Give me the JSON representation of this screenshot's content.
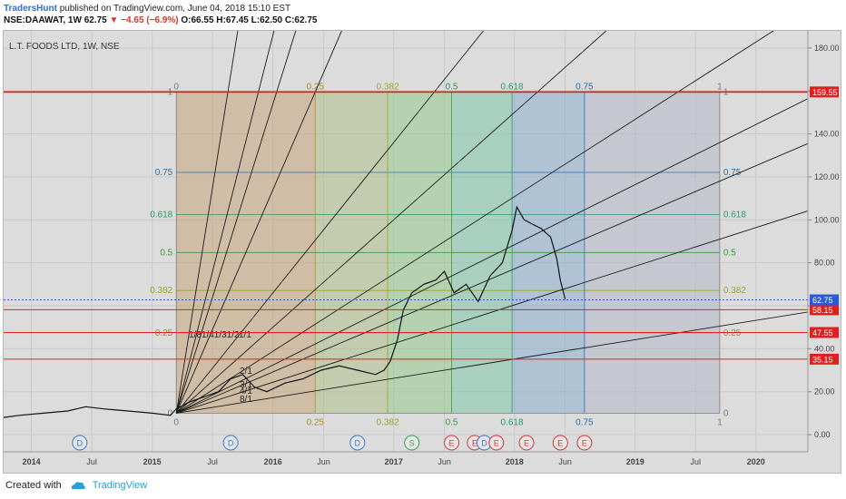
{
  "header": {
    "user": "TradersHunt",
    "published": "published on TradingView.com, June 04, 2018 15:10 EST",
    "symbol": "NSE:DAAWAT, 1W",
    "last": "62.75",
    "change": "−4.65 (−6.9%)",
    "ohlc": "O:66.55 H:67.45 L:62.50 C:62.75"
  },
  "footer": {
    "created": "Created with",
    "brand": "TradingView"
  },
  "chart_data": {
    "type": "line",
    "title": "L.T. FOODS LTD, 1W, NSE",
    "y_ticks": [
      0,
      20,
      40,
      60,
      80,
      100,
      120,
      140,
      160,
      180
    ],
    "y_tick_labels": [
      "0.00",
      "20.00",
      "40.00",
      "60.00",
      "80.00",
      "100.00",
      "120.00",
      "140.00",
      "160.00",
      "180.00"
    ],
    "ylim": [
      -8,
      188
    ],
    "x_ticks": [
      {
        "label": "2014",
        "t": 2014.0,
        "bold": true
      },
      {
        "label": "Jul",
        "t": 2014.5,
        "bold": false
      },
      {
        "label": "2015",
        "t": 2015.0,
        "bold": true
      },
      {
        "label": "Jul",
        "t": 2015.5,
        "bold": false
      },
      {
        "label": "2016",
        "t": 2016.0,
        "bold": true
      },
      {
        "label": "Jun",
        "t": 2016.42,
        "bold": false
      },
      {
        "label": "2017",
        "t": 2017.0,
        "bold": true
      },
      {
        "label": "Jun",
        "t": 2017.42,
        "bold": false
      },
      {
        "label": "2018",
        "t": 2018.0,
        "bold": true
      },
      {
        "label": "Jun",
        "t": 2018.42,
        "bold": false
      },
      {
        "label": "2019",
        "t": 2019.0,
        "bold": true
      },
      {
        "label": "Jul",
        "t": 2019.5,
        "bold": false
      },
      {
        "label": "2020",
        "t": 2020.0,
        "bold": true
      }
    ],
    "xlim": [
      2013.77,
      2020.43
    ],
    "price": {
      "t": [
        2013.77,
        2013.9,
        2014.1,
        2014.3,
        2014.45,
        2014.6,
        2014.8,
        2015.0,
        2015.15,
        2015.2,
        2015.3,
        2015.45,
        2015.55,
        2015.65,
        2015.75,
        2015.85,
        2015.95,
        2016.1,
        2016.25,
        2016.4,
        2016.55,
        2016.7,
        2016.85,
        2016.92,
        2016.97,
        2017.03,
        2017.08,
        2017.15,
        2017.25,
        2017.35,
        2017.42,
        2017.5,
        2017.6,
        2017.7,
        2017.8,
        2017.9,
        2017.98,
        2018.02,
        2018.08,
        2018.15,
        2018.22,
        2018.3,
        2018.35,
        2018.38,
        2018.42
      ],
      "v": [
        8,
        9,
        10,
        11,
        13,
        12,
        11,
        10,
        9,
        12,
        15,
        18,
        20,
        26,
        28,
        22,
        20,
        24,
        26,
        30,
        32,
        30,
        28,
        30,
        34,
        44,
        58,
        66,
        70,
        72,
        76,
        66,
        70,
        62,
        74,
        80,
        95,
        106,
        100,
        98,
        96,
        92,
        82,
        72,
        63
      ]
    },
    "fib_levels": [
      {
        "ratio": "0",
        "value": 10
      },
      {
        "ratio": "0.25",
        "value": 47.4
      },
      {
        "ratio": "0.382",
        "value": 67.1
      },
      {
        "ratio": "0.5",
        "value": 84.8
      },
      {
        "ratio": "0.618",
        "value": 102.5
      },
      {
        "ratio": "0.75",
        "value": 122.1
      },
      {
        "ratio": "1",
        "value": 159.55
      }
    ],
    "fib_times": [
      {
        "ratio": "0",
        "t": 2015.2
      },
      {
        "ratio": "0.25",
        "t": 2016.35
      },
      {
        "ratio": "0.382",
        "t": 2016.95
      },
      {
        "ratio": "0.5",
        "t": 2017.48
      },
      {
        "ratio": "0.618",
        "t": 2017.98
      },
      {
        "ratio": "0.75",
        "t": 2018.58
      },
      {
        "ratio": "1",
        "t": 2019.7
      }
    ],
    "gann_origin": {
      "t": 2015.2,
      "v": 10
    },
    "gann_fan": [
      {
        "label": "1/8",
        "slope": 350
      },
      {
        "label": "1/4",
        "slope": 220
      },
      {
        "label": "1/3",
        "slope": 180
      },
      {
        "label": "1/2",
        "slope": 130
      },
      {
        "label": "1/1",
        "slope": 70
      },
      {
        "label": "2/1",
        "slope": 36
      },
      {
        "label": "3/1",
        "slope": 24
      },
      {
        "label": "4/1",
        "slope": 18
      },
      {
        "label": "8/1",
        "slope": 9
      },
      {
        "label": "",
        "slope": 50
      },
      {
        "label": "",
        "slope": 28
      }
    ],
    "fan_label_text": "1/81/41/31/2",
    "horizontal_levels": [
      {
        "label": "159.55",
        "value": 159.55,
        "color": "#e02020"
      },
      {
        "label": "58.15",
        "value": 58.15,
        "color": "#e02020"
      },
      {
        "label": "47.55",
        "value": 47.55,
        "color": "#e02020"
      },
      {
        "label": "35.15",
        "value": 35.15,
        "color": "#e02020"
      }
    ],
    "last_price": {
      "label": "62.75",
      "value": 62.75,
      "color": "#2a5bd7"
    },
    "events": [
      {
        "type": "D",
        "t": 2014.4
      },
      {
        "type": "D",
        "t": 2015.65
      },
      {
        "type": "D",
        "t": 2016.7
      },
      {
        "type": "S",
        "t": 2017.15
      },
      {
        "type": "E",
        "t": 2017.48
      },
      {
        "type": "E",
        "t": 2017.67
      },
      {
        "type": "D",
        "t": 2017.75
      },
      {
        "type": "E",
        "t": 2017.85
      },
      {
        "type": "E",
        "t": 2018.1
      },
      {
        "type": "E",
        "t": 2018.38
      },
      {
        "type": "E",
        "t": 2018.58
      }
    ],
    "colors": {
      "grid": "#c9c9c9",
      "axis_text": "#444444",
      "event_D": "#3a7bd5",
      "event_S": "#3aa35c",
      "event_E": "#d23b3b"
    }
  }
}
